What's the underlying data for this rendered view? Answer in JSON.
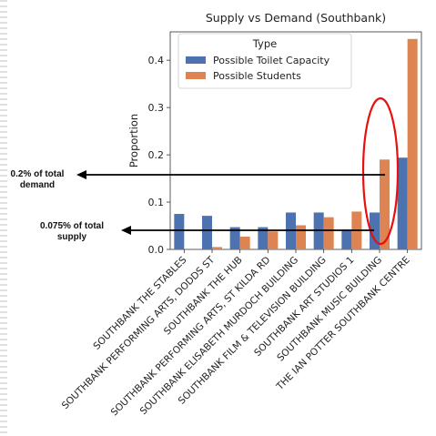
{
  "chart_data": {
    "type": "bar",
    "title": "Supply vs Demand (Southbank)",
    "xlabel": "",
    "ylabel": "Proportion",
    "ylim": [
      0,
      0.46
    ],
    "yticks": [
      "0.0",
      "0.1",
      "0.2",
      "0.3",
      "0.4"
    ],
    "ytick_values": [
      0.0,
      0.1,
      0.2,
      0.3,
      0.4
    ],
    "legend_title": "Type",
    "legend_position": "top-left",
    "categories": [
      "SOUTHBANK THE STABLES",
      "SOUTHBANK PERFORMING ARTS, DODDS ST",
      "SOUTHBANK THE HUB",
      "SOUTHBANK PERFORMING ARTS, ST KILDA RD",
      "SOUTHBANK ELISABETH MURDOCH BUILDING",
      "SOUTHBANK FILM & TELEVISION BUILDING",
      "SOUTHBANK ART STUDIOS 1",
      "SOUTHBANK MUSIC BUILDING",
      "THE IAN POTTER SOUTHBANK CENTRE"
    ],
    "series": [
      {
        "name": "Possible Toilet Capacity",
        "color": "#4c72b0",
        "values": [
          0.075,
          0.071,
          0.047,
          0.047,
          0.078,
          0.078,
          0.042,
          0.078,
          0.194
        ]
      },
      {
        "name": "Possible Students",
        "color": "#dd8452",
        "values": [
          0.0,
          0.005,
          0.027,
          0.038,
          0.051,
          0.068,
          0.08,
          0.19,
          0.445
        ]
      }
    ]
  },
  "annotations": {
    "demand_note_line1": "0.2% of total",
    "demand_note_line2": "demand",
    "supply_note_line1": "0.075% of total",
    "supply_note_line2": "supply",
    "highlight_color": "#e8100f"
  }
}
